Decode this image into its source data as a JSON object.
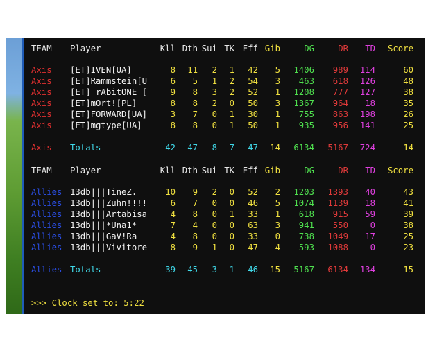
{
  "columns": {
    "team": "TEAM",
    "player": "Player",
    "kll": "Kll",
    "dth": "Dth",
    "sui": "Sui",
    "tk": "TK",
    "eff": "Eff",
    "gib": "Gib",
    "dg": "DG",
    "dr": "DR",
    "td": "TD",
    "score": "Score"
  },
  "axis": {
    "rows": [
      {
        "team": "Axis",
        "player": "[ET]IVEN[UA]",
        "kll": "8",
        "dth": "11",
        "sui": "2",
        "tk": "1",
        "eff": "42",
        "gib": "5",
        "dg": "1406",
        "dr": "989",
        "td": "114",
        "score": "60"
      },
      {
        "team": "Axis",
        "player": "[ET]Rammstein[U",
        "kll": "6",
        "dth": "5",
        "sui": "1",
        "tk": "2",
        "eff": "54",
        "gib": "3",
        "dg": "463",
        "dr": "618",
        "td": "126",
        "score": "48"
      },
      {
        "team": "Axis",
        "player": "[ET] rAbitONE [",
        "kll": "9",
        "dth": "8",
        "sui": "3",
        "tk": "2",
        "eff": "52",
        "gib": "1",
        "dg": "1208",
        "dr": "777",
        "td": "127",
        "score": "38"
      },
      {
        "team": "Axis",
        "player": "[ET]mOrt![PL]",
        "kll": "8",
        "dth": "8",
        "sui": "2",
        "tk": "0",
        "eff": "50",
        "gib": "3",
        "dg": "1367",
        "dr": "964",
        "td": "18",
        "score": "35"
      },
      {
        "team": "Axis",
        "player": "[ET]FORWARD[UA]",
        "kll": "3",
        "dth": "7",
        "sui": "0",
        "tk": "1",
        "eff": "30",
        "gib": "1",
        "dg": "755",
        "dr": "863",
        "td": "198",
        "score": "26"
      },
      {
        "team": "Axis",
        "player": "[ET]mgtype[UA]",
        "kll": "8",
        "dth": "8",
        "sui": "0",
        "tk": "1",
        "eff": "50",
        "gib": "1",
        "dg": "935",
        "dr": "956",
        "td": "141",
        "score": "25"
      }
    ],
    "totals": {
      "team": "Axis",
      "player": "Totals",
      "kll": "42",
      "dth": "47",
      "sui": "8",
      "tk": "7",
      "eff": "47",
      "gib": "14",
      "dg": "6134",
      "dr": "5167",
      "td": "724",
      "score": "14"
    }
  },
  "allies": {
    "rows": [
      {
        "team": "Allies",
        "player": "13db|||TineZ.",
        "kll": "10",
        "dth": "9",
        "sui": "2",
        "tk": "0",
        "eff": "52",
        "gib": "2",
        "dg": "1203",
        "dr": "1393",
        "td": "40",
        "score": "43"
      },
      {
        "team": "Allies",
        "player": "13db|||Zuhn!!!!",
        "kll": "6",
        "dth": "7",
        "sui": "0",
        "tk": "0",
        "eff": "46",
        "gib": "5",
        "dg": "1074",
        "dr": "1139",
        "td": "18",
        "score": "41"
      },
      {
        "team": "Allies",
        "player": "13db|||Artabisa",
        "kll": "4",
        "dth": "8",
        "sui": "0",
        "tk": "1",
        "eff": "33",
        "gib": "1",
        "dg": "618",
        "dr": "915",
        "td": "59",
        "score": "39"
      },
      {
        "team": "Allies",
        "player": "13db|||*Una1*",
        "kll": "7",
        "dth": "4",
        "sui": "0",
        "tk": "0",
        "eff": "63",
        "gib": "3",
        "dg": "941",
        "dr": "550",
        "td": "0",
        "score": "38"
      },
      {
        "team": "Allies",
        "player": "13db|||GaV!Ra",
        "kll": "4",
        "dth": "8",
        "sui": "0",
        "tk": "0",
        "eff": "33",
        "gib": "0",
        "dg": "738",
        "dr": "1049",
        "td": "17",
        "score": "25"
      },
      {
        "team": "Allies",
        "player": "13db|||Vivitore",
        "kll": "8",
        "dth": "9",
        "sui": "1",
        "tk": "0",
        "eff": "47",
        "gib": "4",
        "dg": "593",
        "dr": "1088",
        "td": "0",
        "score": "23"
      }
    ],
    "totals": {
      "team": "Allies",
      "player": "Totals",
      "kll": "39",
      "dth": "45",
      "sui": "3",
      "tk": "1",
      "eff": "46",
      "gib": "15",
      "dg": "5167",
      "dr": "6134",
      "td": "134",
      "score": "15"
    }
  },
  "console_line": ">>> Clock set to: 5:22",
  "colors": {
    "background": "#0f0f0f",
    "header": "#e8e8e8",
    "player": "#f2f2f2",
    "stat": "#f0e040",
    "gib": "#f0e040",
    "dg": "#4fe04f",
    "dr": "#e03a3a",
    "td": "#e040e0",
    "score": "#f0e040",
    "axis": "#e03030",
    "allies": "#2a4de0",
    "totals": "#40d8e8",
    "prompt": "#f0e040"
  }
}
